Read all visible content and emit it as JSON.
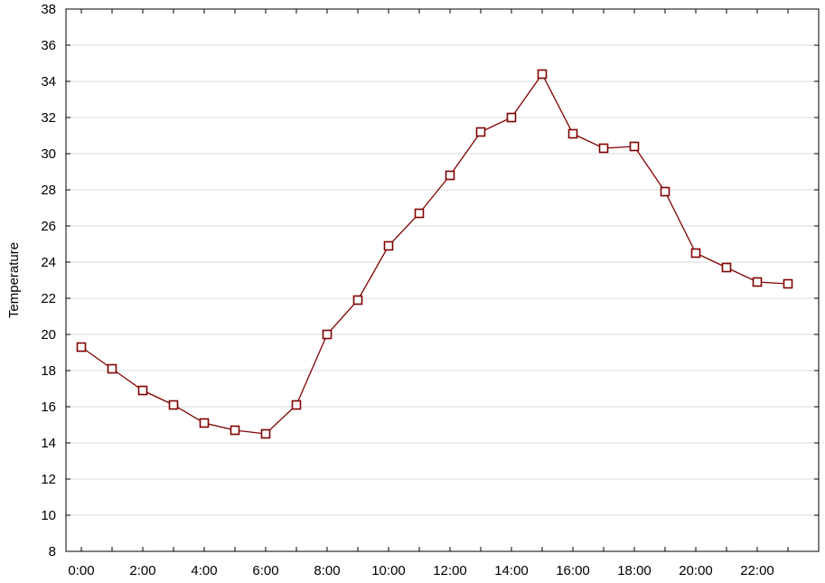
{
  "chart_data": {
    "type": "line",
    "title": "",
    "xlabel": "",
    "ylabel": "Temperature",
    "x": [
      "0:00",
      "1:00",
      "2:00",
      "3:00",
      "4:00",
      "5:00",
      "6:00",
      "7:00",
      "8:00",
      "9:00",
      "10:00",
      "11:00",
      "12:00",
      "13:00",
      "14:00",
      "15:00",
      "16:00",
      "17:00",
      "18:00",
      "19:00",
      "20:00",
      "21:00",
      "22:00",
      "23:00"
    ],
    "xticks": [
      "0:00",
      "2:00",
      "4:00",
      "6:00",
      "8:00",
      "10:00",
      "12:00",
      "14:00",
      "16:00",
      "18:00",
      "20:00",
      "22:00"
    ],
    "yticks": [
      8,
      10,
      12,
      14,
      16,
      18,
      20,
      22,
      24,
      26,
      28,
      30,
      32,
      34,
      36,
      38
    ],
    "ylim": [
      8,
      38
    ],
    "grid": true,
    "legend": "none",
    "series": [
      {
        "values": [
          19.3,
          18.1,
          16.9,
          16.1,
          15.1,
          14.7,
          14.5,
          16.1,
          20.0,
          21.9,
          24.9,
          26.7,
          28.8,
          31.2,
          32.0,
          34.4,
          31.1,
          30.3,
          30.4,
          27.9,
          24.5,
          23.7,
          22.9,
          22.8
        ],
        "color": "#800000",
        "marker": "square"
      }
    ]
  }
}
